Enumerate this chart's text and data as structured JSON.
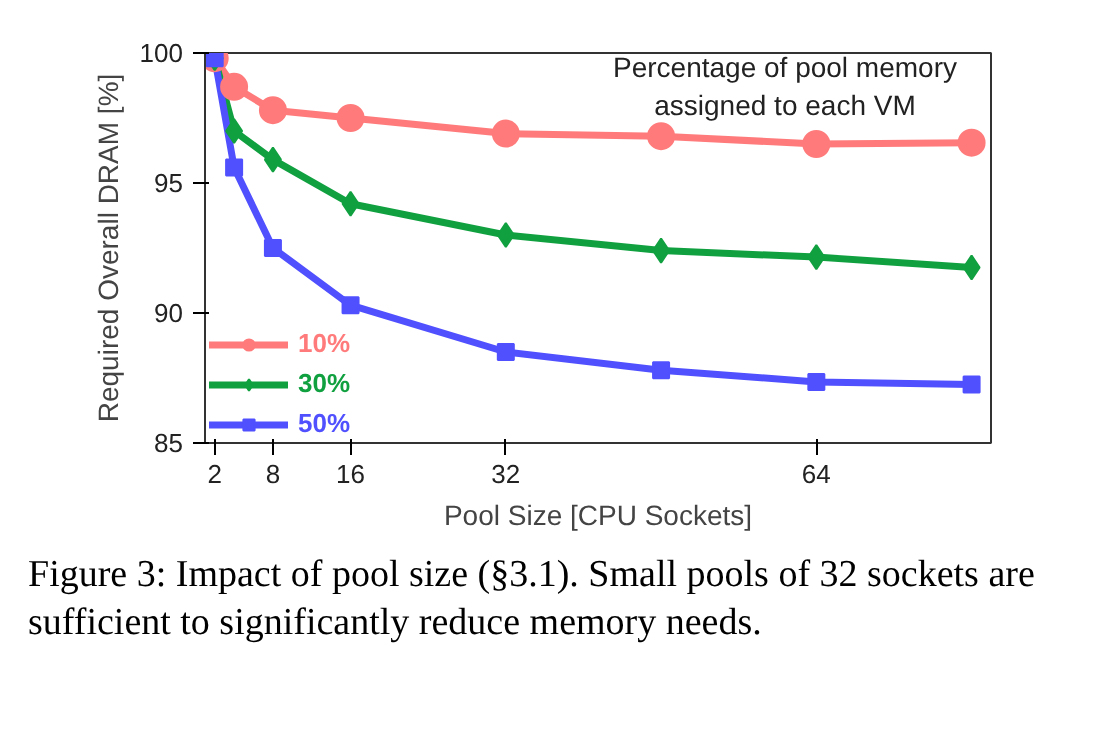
{
  "chart_data": {
    "type": "line",
    "xlabel": "Pool Size [CPU Sockets]",
    "ylabel": "Required Overall DRAM [%]",
    "x": [
      2,
      4,
      8,
      16,
      32,
      48,
      64,
      80
    ],
    "series": [
      {
        "name": "10%",
        "color": "#ff7b7b",
        "marker": "circle",
        "values": [
          99.8,
          98.7,
          97.8,
          97.5,
          96.9,
          96.8,
          96.5,
          96.55
        ]
      },
      {
        "name": "30%",
        "color": "#10a040",
        "marker": "diamond",
        "values": [
          99.8,
          97.0,
          95.9,
          94.2,
          93.0,
          92.4,
          92.15,
          91.75
        ]
      },
      {
        "name": "50%",
        "color": "#5050ff",
        "marker": "square",
        "values": [
          99.8,
          95.6,
          92.5,
          90.3,
          88.5,
          87.8,
          87.35,
          87.25
        ]
      }
    ],
    "xlim": [
      1,
      82
    ],
    "ylim": [
      85,
      100
    ],
    "xticks": [
      2,
      8,
      16,
      32,
      64
    ],
    "yticks": [
      85,
      90,
      95,
      100
    ],
    "grid": false,
    "legend": "bottom left",
    "annotations": [
      "Percentage of pool memory\nassigned to each VM",
      "Figure 3: Impact of pool size (§3.1). Small pools of 32 sockets are sufficient to significantly reduce memory needs."
    ]
  }
}
